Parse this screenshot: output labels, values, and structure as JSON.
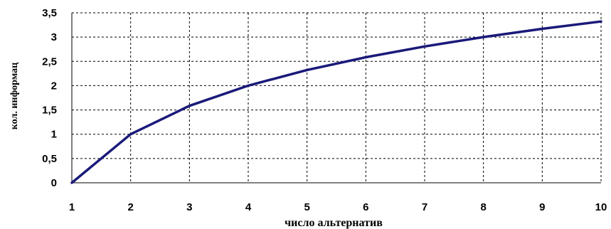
{
  "chart_data": {
    "type": "line",
    "title": "",
    "xlabel": "число альтернатив",
    "ylabel": "кол. информац",
    "x": [
      1,
      2,
      3,
      4,
      5,
      6,
      7,
      8,
      9,
      10
    ],
    "series": [
      {
        "values": [
          0,
          1,
          1.585,
          2,
          2.322,
          2.585,
          2.807,
          3,
          3.17,
          3.322
        ],
        "color": "#1a1a7a"
      }
    ],
    "xlim": [
      1,
      10
    ],
    "ylim": [
      0,
      3.5
    ],
    "x_ticks": [
      "1",
      "2",
      "3",
      "4",
      "5",
      "6",
      "7",
      "8",
      "9",
      "10"
    ],
    "y_ticks": [
      "0",
      "0,5",
      "1",
      "1,5",
      "2",
      "2,5",
      "3",
      "3,5"
    ],
    "grid": true,
    "grid_style": "dashed",
    "legend": "none"
  }
}
